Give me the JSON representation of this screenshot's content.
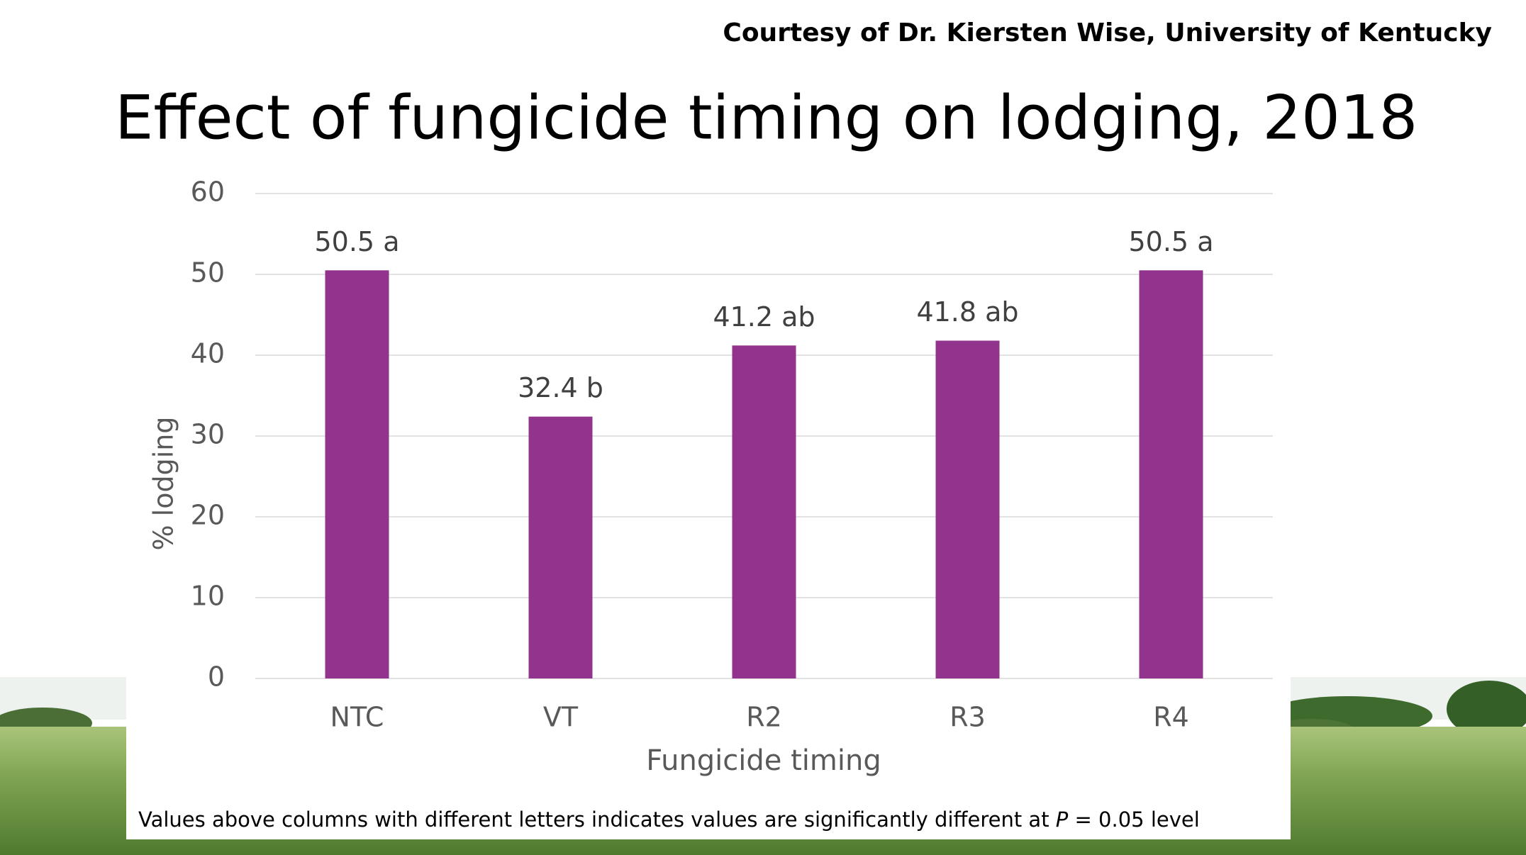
{
  "credit": "Courtesy of Dr. Kiersten Wise, University of Kentucky",
  "chart_data": {
    "type": "bar",
    "title": "Effect of fungicide timing on lodging, 2018",
    "x_label": "Fungicide timing",
    "y_label": "% lodging",
    "categories": [
      "NTC",
      "VT",
      "R2",
      "R3",
      "R4"
    ],
    "values": [
      50.5,
      32.4,
      41.2,
      41.8,
      50.5
    ],
    "value_labels": [
      "50.5 a",
      "32.4 b",
      "41.2 ab",
      "41.8 ab",
      "50.5 a"
    ],
    "color": "#92348e",
    "ylim": [
      0,
      60
    ],
    "yticks": [
      0,
      10,
      20,
      30,
      40,
      50,
      60
    ],
    "grid": true,
    "footnote": [
      "Values above columns with different letters indicates values are significantly different at ",
      "P",
      " = 0.05 level"
    ]
  }
}
